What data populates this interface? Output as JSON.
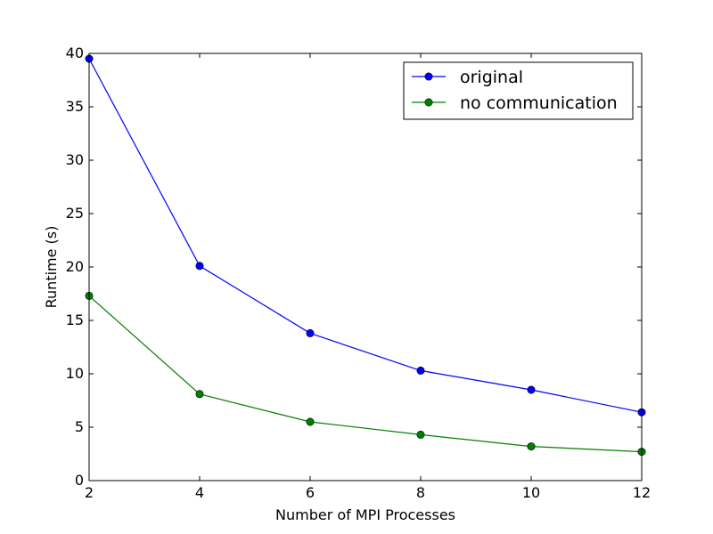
{
  "chart_data": {
    "type": "line",
    "title": "",
    "xlabel": "Number of MPI Processes",
    "ylabel": "Runtime (s)",
    "xlim": [
      2,
      12
    ],
    "ylim": [
      0,
      40
    ],
    "xticks": [
      "2",
      "4",
      "6",
      "8",
      "10",
      "12"
    ],
    "yticks": [
      "0",
      "5",
      "10",
      "15",
      "20",
      "25",
      "30",
      "35",
      "40"
    ],
    "grid": false,
    "legend_position": "top-right",
    "x": [
      2,
      4,
      6,
      8,
      10,
      12
    ],
    "series": [
      {
        "name": "original",
        "color": "#0000ff",
        "values": [
          39.5,
          20.1,
          13.8,
          10.3,
          8.5,
          6.4
        ]
      },
      {
        "name": "no communication",
        "color": "#008000",
        "values": [
          17.3,
          8.1,
          5.5,
          4.3,
          3.2,
          2.7
        ]
      }
    ]
  }
}
